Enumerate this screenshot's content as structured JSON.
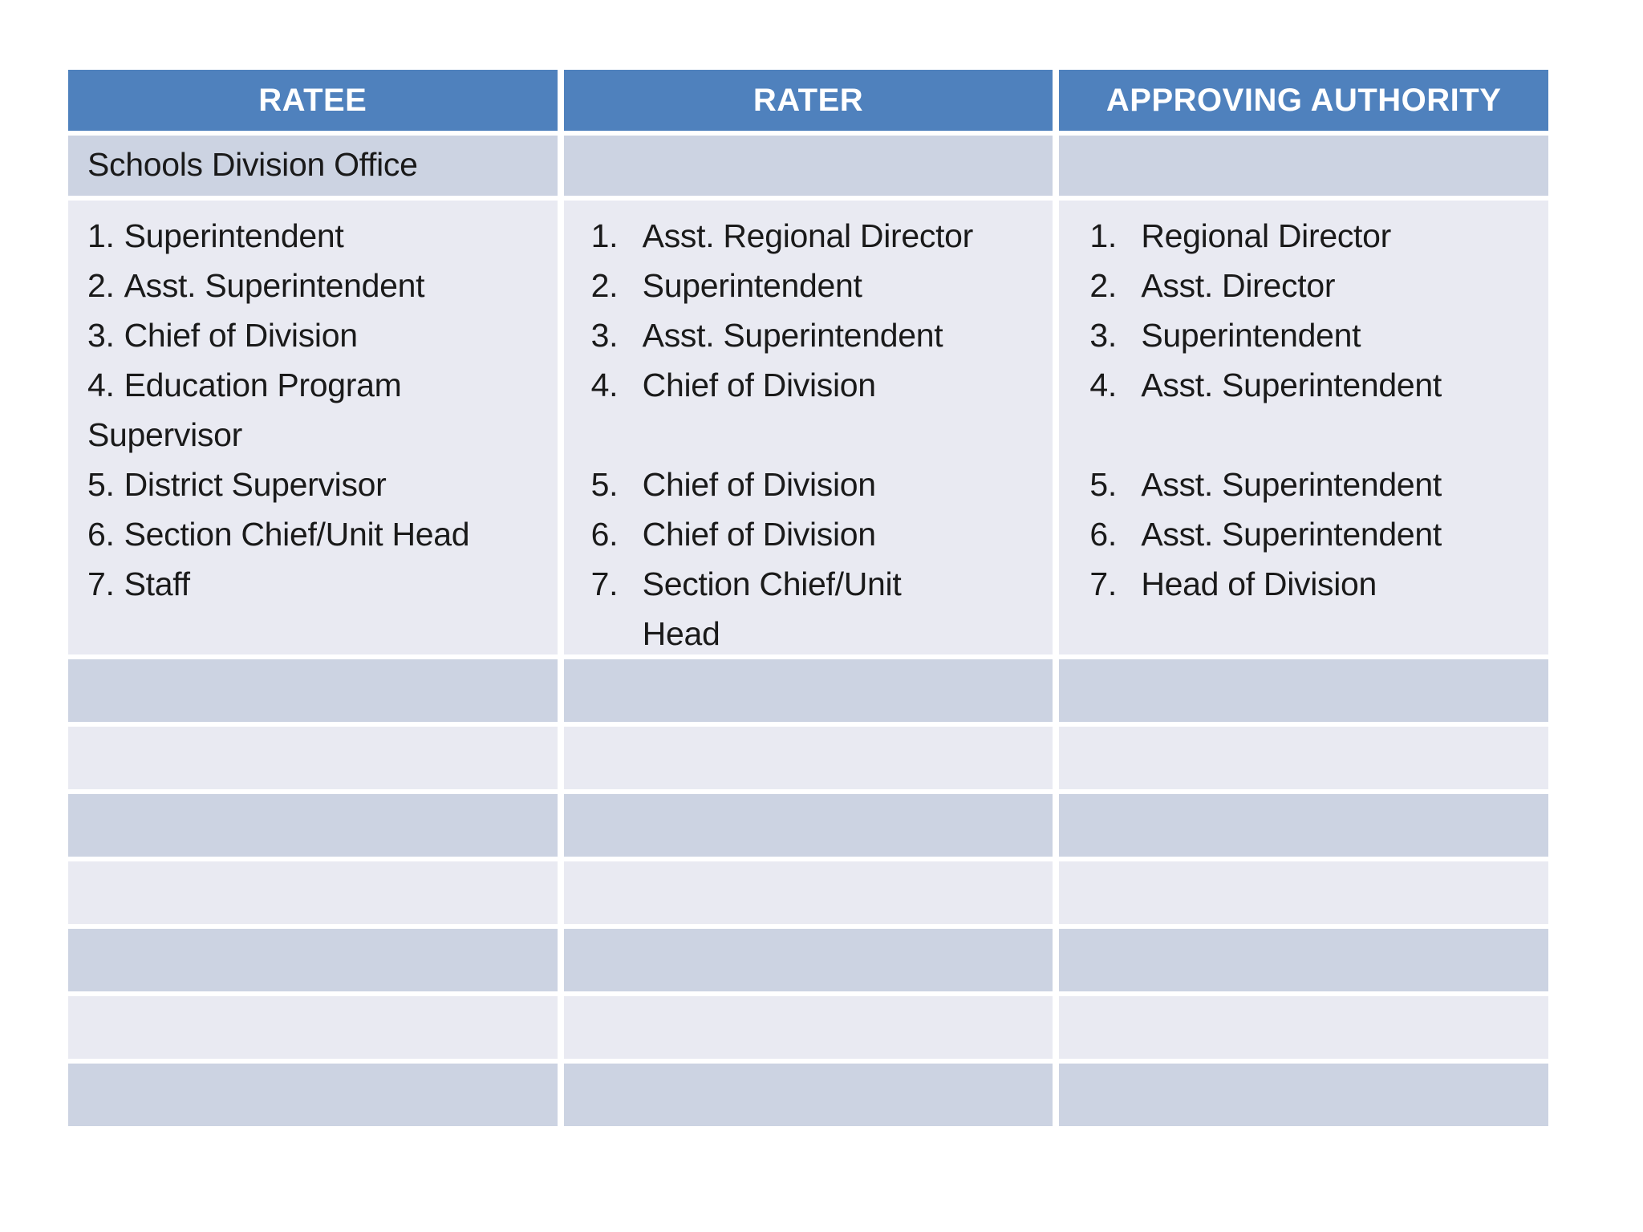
{
  "table": {
    "headers": [
      "RATEE",
      "RATER",
      "APPROVING AUTHORITY"
    ],
    "group_label": "Schools Division Office",
    "ratee": [
      {
        "num": "1.",
        "text": "Superintendent"
      },
      {
        "num": "2.",
        "text": "Asst. Superintendent"
      },
      {
        "num": "3.",
        "text": "Chief of Division"
      },
      {
        "num": "4.",
        "text": "Education Program",
        "text2": "Supervisor"
      },
      {
        "num": "5.",
        "text": "District Supervisor"
      },
      {
        "num": "6.",
        "text": "Section Chief/Unit Head"
      },
      {
        "num": "7.",
        "text": "Staff"
      }
    ],
    "rater": [
      {
        "num": "1.",
        "text": "Asst. Regional Director"
      },
      {
        "num": "2.",
        "text": "Superintendent"
      },
      {
        "num": "3.",
        "text": "Asst. Superintendent"
      },
      {
        "num": "4.",
        "text": "Chief of Division"
      },
      {
        "num": "5.",
        "text": "Chief of Division"
      },
      {
        "num": "6.",
        "text": "Chief of Division"
      },
      {
        "num": "7.",
        "text": "Section Chief/Unit",
        "text2": "Head"
      }
    ],
    "authority": [
      {
        "num": "1.",
        "text": "Regional Director"
      },
      {
        "num": "2.",
        "text": "Asst. Director"
      },
      {
        "num": "3.",
        "text": "Superintendent"
      },
      {
        "num": "4.",
        "text": "Asst. Superintendent"
      },
      {
        "num": "5.",
        "text": "Asst. Superintendent"
      },
      {
        "num": "6.",
        "text": "Asst. Superintendent"
      },
      {
        "num": "7.",
        "text": "Head of Division"
      }
    ],
    "empty_row_count": 7
  },
  "colors": {
    "header_bg": "#4F81BD",
    "band_dark": "#CCD3E2",
    "band_light": "#E9EAF2",
    "header_text": "#FFFFFF",
    "body_text": "#1A1A1A",
    "page_bg": "#FFFFFF"
  }
}
